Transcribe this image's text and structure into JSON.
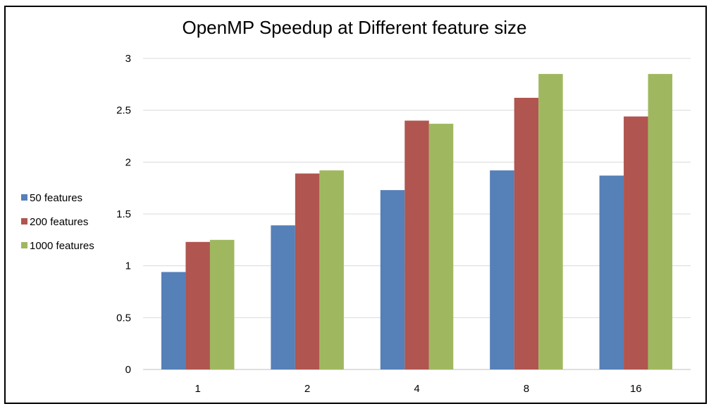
{
  "chart_data": {
    "type": "bar",
    "title": "OpenMP Speedup at Different feature size",
    "xlabel": "",
    "ylabel": "",
    "categories": [
      "1",
      "2",
      "4",
      "8",
      "16"
    ],
    "ylim": [
      0,
      3
    ],
    "yticks": [
      "0",
      "0.5",
      "1",
      "1.5",
      "2",
      "2.5",
      "3"
    ],
    "grid": true,
    "legend_position": "left",
    "series": [
      {
        "name": "50 features",
        "color": "#5580b8",
        "values": [
          0.94,
          1.39,
          1.73,
          1.92,
          1.87
        ]
      },
      {
        "name": "200 features",
        "color": "#b0554f",
        "values": [
          1.23,
          1.89,
          2.4,
          2.62,
          2.44
        ]
      },
      {
        "name": "1000 features",
        "color": "#9fb85f",
        "values": [
          1.25,
          1.92,
          2.37,
          2.85,
          2.85
        ]
      }
    ]
  }
}
